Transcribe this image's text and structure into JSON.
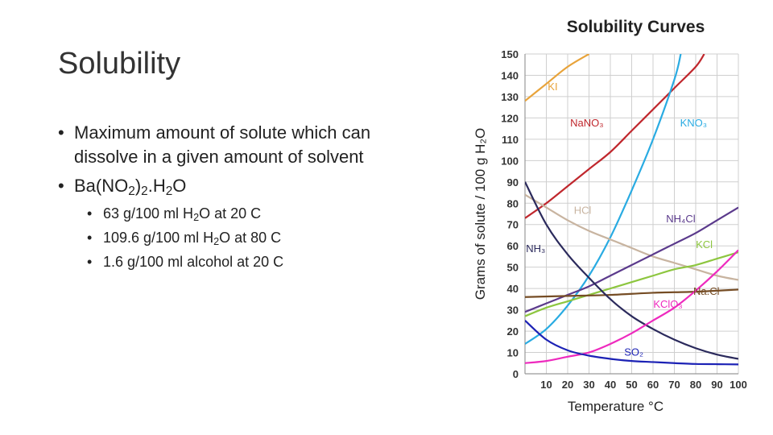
{
  "slide": {
    "title": "Solubility",
    "bullets": [
      {
        "text_html": "Maximum amount of solute which can dissolve in a given amount of solvent"
      },
      {
        "text_html": "Ba(NO<sub>2</sub>)<sub>2</sub>.H<sub>2</sub>O",
        "subitems": [
          {
            "text_html": "63 g/100 ml H<sub>2</sub>O at 20 C"
          },
          {
            "text_html": "109.6 g/100 ml H<sub>2</sub>O at 80 C"
          },
          {
            "text_html": "1.6 g/100 ml alcohol at 20 C"
          }
        ]
      }
    ]
  },
  "chart_data": {
    "type": "line",
    "title": "Solubility Curves",
    "xlabel": "Temperature °C",
    "ylabel": "Grams of solute / 100 g H₂O",
    "xlim": [
      0,
      100
    ],
    "ylim": [
      0,
      150
    ],
    "xticks": [
      10,
      20,
      30,
      40,
      50,
      60,
      70,
      80,
      90,
      100
    ],
    "yticks": [
      0,
      10,
      20,
      30,
      40,
      50,
      60,
      70,
      80,
      90,
      100,
      110,
      120,
      130,
      140,
      150
    ],
    "grid": true,
    "series": [
      {
        "name": "KI",
        "color": "#e8a33a",
        "x": [
          0,
          10,
          20,
          30
        ],
        "y": [
          128,
          136,
          144,
          150
        ]
      },
      {
        "name": "NaNO₃",
        "color": "#c0272d",
        "x": [
          0,
          10,
          20,
          30,
          40,
          50,
          60,
          70,
          80,
          84
        ],
        "y": [
          73,
          80,
          88,
          96,
          104,
          114,
          124,
          134,
          144,
          150
        ]
      },
      {
        "name": "KNO₃",
        "color": "#29abe2",
        "x": [
          0,
          10,
          20,
          30,
          40,
          50,
          60,
          70,
          73
        ],
        "y": [
          14,
          21,
          32,
          46,
          64,
          86,
          110,
          138,
          150
        ]
      },
      {
        "name": "HCl",
        "color": "#c8b4a0",
        "x": [
          0,
          10,
          20,
          30,
          40,
          50,
          60,
          70,
          80,
          90,
          100
        ],
        "y": [
          84,
          78,
          72,
          67,
          63,
          59,
          55,
          52,
          49,
          46,
          44
        ]
      },
      {
        "name": "NH₄Cl",
        "color": "#5b3a8c",
        "x": [
          0,
          10,
          20,
          30,
          40,
          50,
          60,
          70,
          80,
          90,
          100
        ],
        "y": [
          29,
          33,
          37,
          41,
          46,
          51,
          56,
          61,
          66,
          72,
          78
        ]
      },
      {
        "name": "KCl",
        "color": "#8dc63f",
        "x": [
          0,
          10,
          20,
          30,
          40,
          50,
          60,
          70,
          80,
          90,
          100
        ],
        "y": [
          27,
          31,
          34,
          37,
          40,
          43,
          46,
          49,
          51,
          54,
          57
        ]
      },
      {
        "name": "NaCl",
        "color": "#754c24",
        "x": [
          0,
          20,
          40,
          60,
          80,
          100
        ],
        "y": [
          36,
          36.5,
          37,
          38,
          38.5,
          39.5
        ]
      },
      {
        "name": "NH₃",
        "color": "#2b2a5c",
        "x": [
          0,
          10,
          20,
          30,
          40,
          50,
          60,
          70,
          80,
          90,
          100
        ],
        "y": [
          90,
          70,
          56,
          45,
          35,
          27,
          21,
          16,
          12,
          9,
          7
        ]
      },
      {
        "name": "KClO₃",
        "color": "#ee2abe",
        "x": [
          0,
          10,
          20,
          30,
          40,
          50,
          60,
          70,
          80,
          90,
          100
        ],
        "y": [
          5,
          6,
          8,
          10,
          14,
          19,
          25,
          31,
          39,
          48,
          58
        ]
      },
      {
        "name": "SO₂",
        "color": "#1c22b5",
        "x": [
          0,
          10,
          20,
          30,
          40,
          50,
          60,
          70,
          80,
          90,
          100
        ],
        "y": [
          25,
          16,
          11,
          8.5,
          7,
          6,
          5.5,
          5,
          4.6,
          4.5,
          4.4
        ]
      }
    ],
    "labels": [
      {
        "text": "KI",
        "x": 13,
        "y": 133,
        "color": "#e8a33a"
      },
      {
        "text": "NaNO₃",
        "x": 29,
        "y": 116,
        "color": "#c0272d"
      },
      {
        "text": "KNO₃",
        "x": 79,
        "y": 116,
        "color": "#29abe2"
      },
      {
        "text": "HCl",
        "x": 27,
        "y": 75,
        "color": "#c8b4a0"
      },
      {
        "text": "NH₄Cl",
        "x": 73,
        "y": 71,
        "color": "#5b3a8c"
      },
      {
        "text": "KCl",
        "x": 84,
        "y": 59,
        "color": "#8dc63f"
      },
      {
        "text": "NH₃",
        "x": 5,
        "y": 57,
        "color": "#2b2a5c"
      },
      {
        "text": "Na.Cl",
        "x": 85,
        "y": 37,
        "color": "#754c24"
      },
      {
        "text": "KClO₃",
        "x": 67,
        "y": 31,
        "color": "#ee2abe"
      },
      {
        "text": "SO₂",
        "x": 51,
        "y": 8.5,
        "color": "#1c22b5"
      }
    ]
  }
}
